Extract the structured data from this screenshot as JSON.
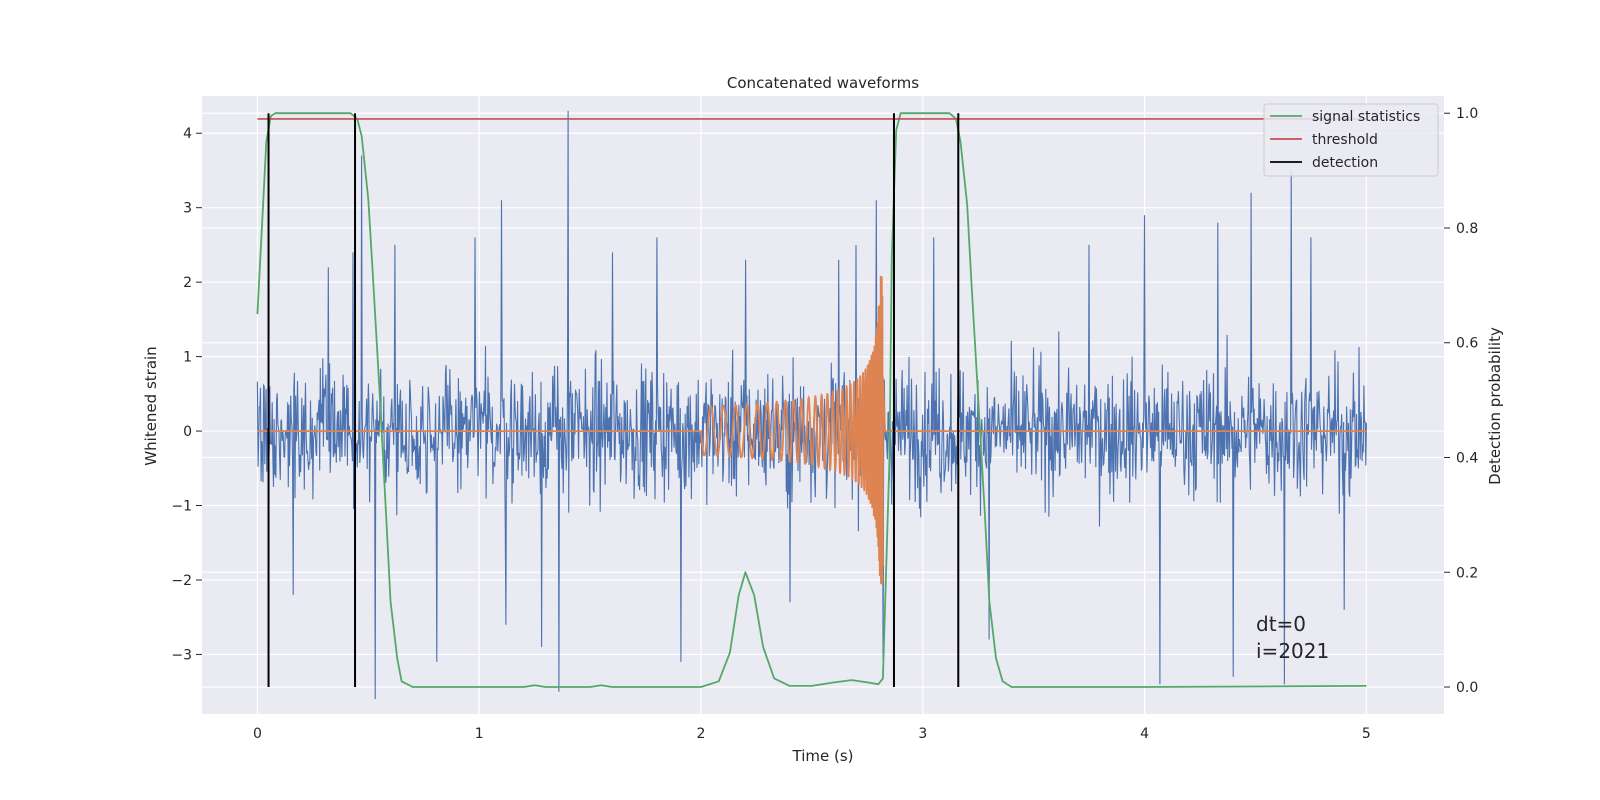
{
  "chart_data": {
    "type": "line",
    "title": "Concatenated waveforms",
    "xlabel": "Time (s)",
    "ylabel": "Whitened strain",
    "ylabel_right": "Detection probability",
    "xlim": [
      -0.25,
      5.35
    ],
    "ylim": [
      -3.8,
      4.5
    ],
    "ylim_right": [
      -0.047,
      1.03
    ],
    "xticks": [
      0,
      1,
      2,
      3,
      4,
      5
    ],
    "xtick_labels": [
      "0",
      "1",
      "2",
      "3",
      "4",
      "5"
    ],
    "yticks": [
      -3,
      -2,
      -1,
      0,
      1,
      2,
      3,
      4
    ],
    "ytick_labels": [
      "−3",
      "−2",
      "−1",
      "0",
      "1",
      "2",
      "3",
      "4"
    ],
    "yticks_right": [
      0.0,
      0.2,
      0.4,
      0.6,
      0.8,
      1.0
    ],
    "ytick_labels_right": [
      "0.0",
      "0.2",
      "0.4",
      "0.6",
      "0.8",
      "1.0"
    ],
    "grid": true,
    "legend_position": "top-right",
    "colors": {
      "noise": "#4c72b0",
      "template": "#dd8452",
      "signal_statistics": "#55a868",
      "threshold": "#c44e52",
      "detection": "#000000",
      "background": "#eaeaf2",
      "grid": "#ffffff"
    },
    "noise": {
      "description_series": "whitened strain",
      "x_range": [
        0,
        5
      ],
      "typical_band": [
        -1.1,
        1.1
      ],
      "spikes": [
        {
          "x": 0.16,
          "y": -2.2
        },
        {
          "x": 0.32,
          "y": 2.2
        },
        {
          "x": 0.43,
          "y": 2.4
        },
        {
          "x": 0.47,
          "y": 3.7
        },
        {
          "x": 0.53,
          "y": -3.6
        },
        {
          "x": 0.62,
          "y": 2.5
        },
        {
          "x": 0.81,
          "y": -3.1
        },
        {
          "x": 0.98,
          "y": 2.6
        },
        {
          "x": 1.1,
          "y": 3.1
        },
        {
          "x": 1.12,
          "y": -2.6
        },
        {
          "x": 1.28,
          "y": -2.9
        },
        {
          "x": 1.36,
          "y": -3.5
        },
        {
          "x": 1.4,
          "y": 4.3
        },
        {
          "x": 1.6,
          "y": 2.4
        },
        {
          "x": 1.8,
          "y": 2.6
        },
        {
          "x": 1.91,
          "y": -3.1
        },
        {
          "x": 2.2,
          "y": 2.3
        },
        {
          "x": 2.4,
          "y": -2.3
        },
        {
          "x": 2.62,
          "y": 2.3
        },
        {
          "x": 2.7,
          "y": 2.5
        },
        {
          "x": 2.79,
          "y": 3.1
        },
        {
          "x": 2.82,
          "y": -3.3
        },
        {
          "x": 3.05,
          "y": 2.6
        },
        {
          "x": 3.3,
          "y": -2.8
        },
        {
          "x": 3.75,
          "y": 2.5
        },
        {
          "x": 4.0,
          "y": 2.9
        },
        {
          "x": 4.07,
          "y": -3.4
        },
        {
          "x": 4.33,
          "y": 2.8
        },
        {
          "x": 4.4,
          "y": -3.3
        },
        {
          "x": 4.48,
          "y": 3.2
        },
        {
          "x": 4.63,
          "y": -3.4
        },
        {
          "x": 4.66,
          "y": 3.5
        },
        {
          "x": 4.75,
          "y": 2.6
        },
        {
          "x": 4.9,
          "y": -2.4
        }
      ]
    },
    "template": {
      "description_series": "injected chirp",
      "chirp_start": 2.0,
      "chirp_end": 2.82,
      "start_amplitude": 0.13,
      "peak_amplitude": 2.1,
      "flat_value": 0.0
    },
    "series": [
      {
        "name": "signal statistics",
        "axis": "right",
        "x": [
          0,
          0.02,
          0.04,
          0.06,
          0.08,
          0.1,
          0.3,
          0.42,
          0.45,
          0.47,
          0.5,
          0.52,
          0.55,
          0.58,
          0.6,
          0.63,
          0.65,
          0.7,
          1.2,
          1.25,
          1.3,
          1.5,
          1.55,
          1.6,
          2.0,
          2.08,
          2.13,
          2.17,
          2.2,
          2.24,
          2.28,
          2.33,
          2.4,
          2.5,
          2.6,
          2.68,
          2.75,
          2.8,
          2.82,
          2.85,
          2.86,
          2.88,
          2.9,
          3.0,
          3.12,
          3.15,
          3.17,
          3.2,
          3.22,
          3.25,
          3.28,
          3.3,
          3.33,
          3.36,
          3.4,
          4.0,
          5.0
        ],
        "y": [
          0.65,
          0.8,
          0.95,
          0.995,
          1.0,
          1.0,
          1.0,
          1.0,
          0.99,
          0.96,
          0.85,
          0.72,
          0.52,
          0.3,
          0.15,
          0.05,
          0.01,
          0.0,
          0.0,
          0.003,
          0.0,
          0.0,
          0.003,
          0.0,
          0.0,
          0.01,
          0.06,
          0.16,
          0.2,
          0.16,
          0.07,
          0.015,
          0.002,
          0.002,
          0.008,
          0.012,
          0.008,
          0.005,
          0.015,
          0.4,
          0.75,
          0.97,
          1.0,
          1.0,
          1.0,
          0.99,
          0.95,
          0.84,
          0.7,
          0.5,
          0.3,
          0.15,
          0.05,
          0.01,
          0.0,
          0.0,
          0.002
        ]
      },
      {
        "name": "threshold",
        "axis": "right",
        "x": [
          0,
          5
        ],
        "y": [
          0.99,
          0.99
        ]
      },
      {
        "name": "detection",
        "axis": "right",
        "x_lines": [
          0.05,
          0.44,
          2.87,
          3.16
        ],
        "y_range": [
          0.0,
          1.0
        ]
      }
    ],
    "annotation": [
      "dt=0",
      "i=2021"
    ]
  }
}
